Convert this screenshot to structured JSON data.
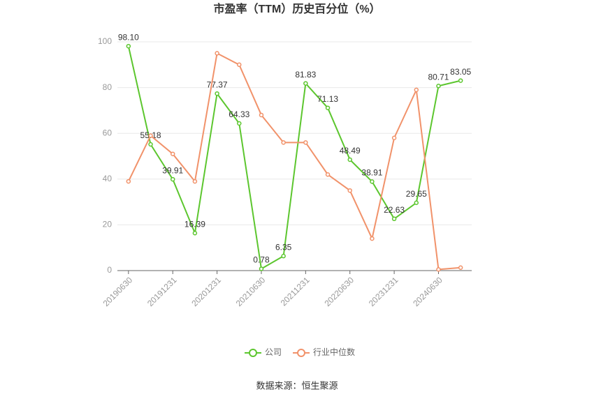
{
  "chart_data": {
    "type": "line",
    "title": "市盈率（TTM）历史百分位（%）",
    "source": "数据来源：恒生聚源",
    "categories": [
      "20190630",
      null,
      "20191231",
      null,
      "20201231",
      null,
      "20210630",
      null,
      "20211231",
      null,
      "20220630",
      null,
      "20231231",
      null,
      "20240630",
      null
    ],
    "series": [
      {
        "name": "公司",
        "color": "#5cc62e",
        "values": [
          98.1,
          55.18,
          39.91,
          16.39,
          77.37,
          64.33,
          0.78,
          6.35,
          81.83,
          71.13,
          48.49,
          38.91,
          22.63,
          29.65,
          80.71,
          83.05
        ],
        "value_labels": [
          "98.10",
          "55.18",
          "39.91",
          "16.39",
          "77.37",
          "64.33",
          "0.78",
          "6.35",
          "81.83",
          "71.13",
          "48.49",
          "38.91",
          "22.63",
          "29.65",
          "80.71",
          "83.05"
        ]
      },
      {
        "name": "行业中位数",
        "color": "#f1926a",
        "values": [
          39,
          59,
          51,
          39,
          95,
          90,
          68,
          56,
          56,
          42,
          35,
          14,
          58,
          79,
          0.5,
          1.3
        ]
      }
    ],
    "ylim": [
      0,
      100
    ],
    "yticks": [
      0,
      20,
      40,
      60,
      80,
      100
    ],
    "grid": true,
    "legend": "bottom"
  }
}
